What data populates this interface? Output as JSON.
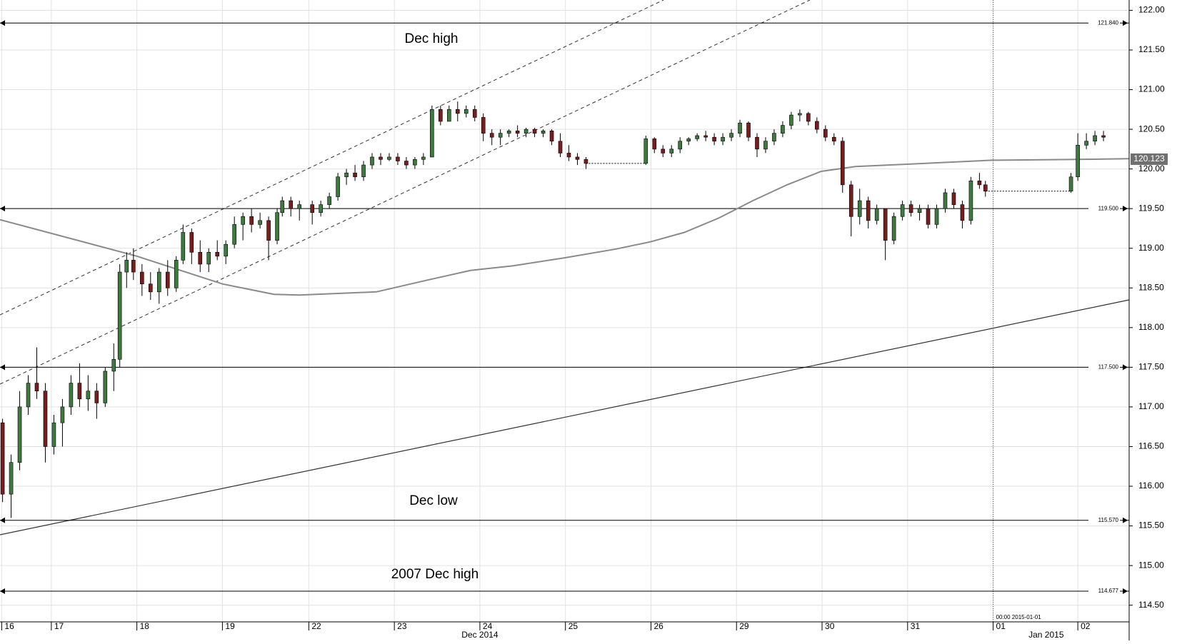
{
  "chart_data": {
    "type": "candlestick",
    "xlim": [
      0,
      13.2
    ],
    "ylim": [
      114.29,
      122.13
    ],
    "grid": true,
    "xticks": [
      {
        "value": 0.02,
        "label": "16"
      },
      {
        "value": 0.6,
        "label": "17"
      },
      {
        "value": 1.6,
        "label": "18"
      },
      {
        "value": 2.6,
        "label": "19"
      },
      {
        "value": 3.61,
        "label": "22"
      },
      {
        "value": 4.61,
        "label": "23"
      },
      {
        "value": 5.61,
        "label": "24"
      },
      {
        "value": 6.61,
        "label": "25"
      },
      {
        "value": 7.61,
        "label": "26"
      },
      {
        "value": 8.61,
        "label": "29"
      },
      {
        "value": 9.61,
        "label": "30"
      },
      {
        "value": 10.61,
        "label": "31"
      },
      {
        "value": 11.61,
        "label": "01"
      },
      {
        "value": 12.6,
        "label": "02"
      }
    ],
    "xlabels2": [
      {
        "value": 5.61,
        "label": "Dec 2014"
      },
      {
        "value": 12.23,
        "label": "Jan 2015"
      }
    ],
    "cursor_time": "00:00 2015-01-01",
    "yticks": [
      {
        "value": 114.5,
        "label": "114.50"
      },
      {
        "value": 115,
        "label": "115.00"
      },
      {
        "value": 115.5,
        "label": "115.50"
      },
      {
        "value": 116,
        "label": "116.00"
      },
      {
        "value": 116.5,
        "label": "116.50"
      },
      {
        "value": 117,
        "label": "117.00"
      },
      {
        "value": 117.5,
        "label": "117.50"
      },
      {
        "value": 118,
        "label": "118.00"
      },
      {
        "value": 118.5,
        "label": "118.50"
      },
      {
        "value": 119,
        "label": "119.00"
      },
      {
        "value": 119.5,
        "label": "119.50"
      },
      {
        "value": 120,
        "label": "120.00"
      },
      {
        "value": 120.5,
        "label": "120.50"
      },
      {
        "value": 121,
        "label": "121.00"
      },
      {
        "value": 121.5,
        "label": "121.50"
      },
      {
        "value": 122,
        "label": "122.00"
      }
    ],
    "levels": [
      {
        "value": 121.84,
        "label": "121.840"
      },
      {
        "value": 119.5,
        "label": "119.500"
      },
      {
        "value": 117.5,
        "label": "117.500"
      },
      {
        "value": 115.57,
        "label": "115.570"
      },
      {
        "value": 114.677,
        "label": "114.677"
      }
    ],
    "annotations": [
      "Dec high",
      "Dec low",
      "2007 Dec high"
    ],
    "last": {
      "value": 120.123,
      "label": "120.123"
    },
    "up_color": "#3d7a3d",
    "down_color": "#7a1c1c",
    "moving_average": {
      "color": "#8a8a8a",
      "x": [
        0,
        1.6,
        2.6,
        3.2,
        3.5,
        4.4,
        5.0,
        5.5,
        6.0,
        6.6,
        7.2,
        7.6,
        8.0,
        8.4,
        8.8,
        9.2,
        9.6,
        10.0,
        10.6,
        11.2,
        11.6,
        12.6,
        13.2
      ],
      "values": [
        119.36,
        118.9,
        118.55,
        118.42,
        118.41,
        118.45,
        118.6,
        118.72,
        118.78,
        118.88,
        118.99,
        119.08,
        119.2,
        119.38,
        119.6,
        119.8,
        119.97,
        120.03,
        120.06,
        120.09,
        120.11,
        120.12,
        120.13
      ]
    },
    "candles": {
      "x": [
        0.03,
        0.13,
        0.23,
        0.33,
        0.43,
        0.53,
        0.63,
        0.73,
        0.83,
        0.93,
        1.03,
        1.13,
        1.23,
        1.33,
        1.4,
        1.48,
        1.56,
        1.66,
        1.76,
        1.86,
        1.96,
        2.06,
        2.14,
        2.24,
        2.34,
        2.44,
        2.54,
        2.64,
        2.74,
        2.84,
        2.94,
        3.04,
        3.14,
        3.24,
        3.3,
        3.4,
        3.5,
        3.65,
        3.75,
        3.85,
        3.95,
        4.05,
        4.15,
        4.25,
        4.35,
        4.45,
        4.55,
        4.65,
        4.75,
        4.85,
        4.95,
        5.05,
        5.15,
        5.25,
        5.35,
        5.45,
        5.55,
        5.65,
        5.75,
        5.85,
        5.95,
        6.05,
        6.15,
        6.25,
        6.35,
        6.45,
        6.55,
        6.65,
        6.75,
        6.85,
        7.55,
        7.65,
        7.75,
        7.85,
        7.95,
        8.05,
        8.15,
        8.25,
        8.35,
        8.45,
        8.55,
        8.65,
        8.75,
        8.85,
        8.95,
        9.05,
        9.15,
        9.25,
        9.35,
        9.45,
        9.55,
        9.65,
        9.75,
        9.85,
        9.95,
        10.05,
        10.15,
        10.25,
        10.35,
        10.45,
        10.55,
        10.65,
        10.75,
        10.85,
        10.95,
        11.05,
        11.15,
        11.25,
        11.35,
        11.45,
        11.52,
        12.52,
        12.6,
        12.7,
        12.8,
        12.9
      ],
      "open": [
        116.8,
        115.9,
        116.3,
        117.0,
        117.3,
        117.2,
        116.5,
        116.8,
        117.0,
        117.3,
        117.1,
        117.2,
        117.05,
        117.45,
        117.6,
        118.7,
        118.85,
        118.7,
        118.55,
        118.45,
        118.7,
        118.5,
        118.85,
        119.2,
        118.95,
        118.8,
        118.95,
        118.9,
        119.05,
        119.3,
        119.4,
        119.3,
        119.35,
        119.1,
        119.45,
        119.6,
        119.5,
        119.55,
        119.45,
        119.55,
        119.65,
        119.9,
        119.95,
        119.9,
        120.05,
        120.15,
        120.12,
        120.15,
        120.1,
        120.05,
        120.12,
        120.15,
        120.75,
        120.6,
        120.75,
        120.7,
        120.75,
        120.65,
        120.45,
        120.4,
        120.45,
        120.48,
        120.45,
        120.5,
        120.45,
        120.48,
        120.35,
        120.2,
        120.15,
        120.12,
        120.07,
        120.38,
        120.25,
        120.2,
        120.25,
        120.35,
        120.38,
        120.42,
        120.4,
        120.35,
        120.4,
        120.45,
        120.58,
        120.4,
        120.25,
        120.35,
        120.45,
        120.55,
        120.68,
        120.7,
        120.6,
        120.5,
        120.4,
        120.35,
        119.8,
        119.4,
        119.6,
        119.35,
        119.5,
        119.1,
        119.4,
        119.55,
        119.45,
        119.5,
        119.3,
        119.5,
        119.7,
        119.55,
        119.35,
        119.85,
        119.8,
        119.72,
        119.9,
        120.3,
        120.35,
        120.42
      ],
      "high": [
        116.85,
        116.4,
        117.2,
        117.4,
        117.75,
        117.3,
        116.9,
        117.1,
        117.4,
        117.55,
        117.4,
        117.3,
        117.5,
        117.8,
        118.8,
        118.95,
        119.0,
        118.8,
        118.7,
        118.75,
        118.85,
        118.9,
        119.3,
        119.25,
        119.1,
        119.0,
        119.1,
        119.1,
        119.4,
        119.45,
        119.5,
        119.45,
        119.4,
        119.5,
        119.65,
        119.65,
        119.6,
        119.6,
        119.6,
        119.7,
        119.95,
        120.0,
        120.05,
        120.1,
        120.2,
        120.2,
        120.2,
        120.2,
        120.15,
        120.15,
        120.2,
        120.8,
        120.8,
        120.8,
        120.85,
        120.8,
        120.8,
        120.7,
        120.5,
        120.5,
        120.5,
        120.55,
        120.52,
        120.52,
        120.5,
        120.5,
        120.45,
        120.3,
        120.2,
        120.15,
        120.42,
        120.4,
        120.3,
        120.3,
        120.4,
        120.4,
        120.45,
        120.48,
        120.45,
        120.45,
        120.5,
        120.62,
        120.6,
        120.45,
        120.4,
        120.5,
        120.6,
        120.72,
        120.75,
        120.72,
        120.65,
        120.55,
        120.45,
        120.4,
        119.85,
        119.75,
        119.65,
        119.55,
        119.5,
        119.45,
        119.6,
        119.6,
        119.55,
        119.55,
        119.55,
        119.75,
        119.75,
        119.6,
        119.9,
        119.95,
        119.85,
        119.95,
        120.45,
        120.45,
        120.48,
        120.48
      ],
      "low": [
        115.8,
        115.6,
        116.2,
        116.9,
        117.1,
        116.3,
        116.4,
        116.5,
        116.9,
        117.0,
        116.95,
        116.85,
        117.0,
        117.2,
        117.5,
        118.5,
        118.6,
        118.4,
        118.35,
        118.3,
        118.4,
        118.45,
        118.8,
        118.8,
        118.7,
        118.7,
        118.85,
        118.8,
        119.0,
        119.1,
        119.2,
        119.25,
        118.85,
        119.05,
        119.4,
        119.4,
        119.35,
        119.3,
        119.4,
        119.5,
        119.6,
        119.8,
        119.85,
        119.85,
        120.0,
        120.05,
        120.1,
        120.05,
        120.0,
        120.0,
        120.05,
        120.15,
        120.55,
        120.6,
        120.6,
        120.65,
        120.6,
        120.35,
        120.3,
        120.3,
        120.4,
        120.4,
        120.4,
        120.4,
        120.4,
        120.3,
        120.15,
        120.1,
        120.05,
        120.0,
        120.05,
        120.2,
        120.15,
        120.15,
        120.2,
        120.3,
        120.35,
        120.35,
        120.3,
        120.3,
        120.35,
        120.4,
        120.35,
        120.15,
        120.2,
        120.3,
        120.4,
        120.5,
        120.6,
        120.55,
        120.45,
        120.35,
        120.3,
        119.7,
        119.15,
        119.3,
        119.25,
        119.3,
        118.85,
        119.05,
        119.35,
        119.4,
        119.35,
        119.25,
        119.25,
        119.45,
        119.5,
        119.25,
        119.3,
        119.75,
        119.65,
        119.7,
        119.85,
        120.25,
        120.3,
        120.35
      ],
      "close": [
        115.9,
        116.3,
        117.0,
        117.3,
        117.2,
        116.5,
        116.8,
        117.0,
        117.3,
        117.1,
        117.2,
        117.05,
        117.45,
        117.6,
        118.7,
        118.85,
        118.7,
        118.55,
        118.45,
        118.7,
        118.5,
        118.85,
        119.2,
        118.95,
        118.8,
        118.95,
        118.9,
        119.05,
        119.3,
        119.4,
        119.3,
        119.35,
        119.1,
        119.45,
        119.6,
        119.5,
        119.55,
        119.45,
        119.55,
        119.65,
        119.9,
        119.95,
        119.9,
        120.05,
        120.15,
        120.12,
        120.15,
        120.1,
        120.05,
        120.12,
        120.15,
        120.75,
        120.6,
        120.75,
        120.7,
        120.75,
        120.65,
        120.45,
        120.4,
        120.45,
        120.48,
        120.45,
        120.5,
        120.45,
        120.48,
        120.35,
        120.2,
        120.15,
        120.12,
        120.07,
        120.38,
        120.25,
        120.2,
        120.25,
        120.35,
        120.38,
        120.42,
        120.4,
        120.35,
        120.4,
        120.45,
        120.58,
        120.4,
        120.25,
        120.35,
        120.45,
        120.55,
        120.68,
        120.7,
        120.6,
        120.5,
        120.4,
        120.35,
        119.8,
        119.4,
        119.6,
        119.35,
        119.5,
        119.1,
        119.4,
        119.55,
        119.45,
        119.5,
        119.3,
        119.5,
        119.7,
        119.55,
        119.35,
        119.85,
        119.8,
        119.72,
        119.9,
        120.3,
        120.35,
        120.42,
        120.4
      ]
    }
  }
}
